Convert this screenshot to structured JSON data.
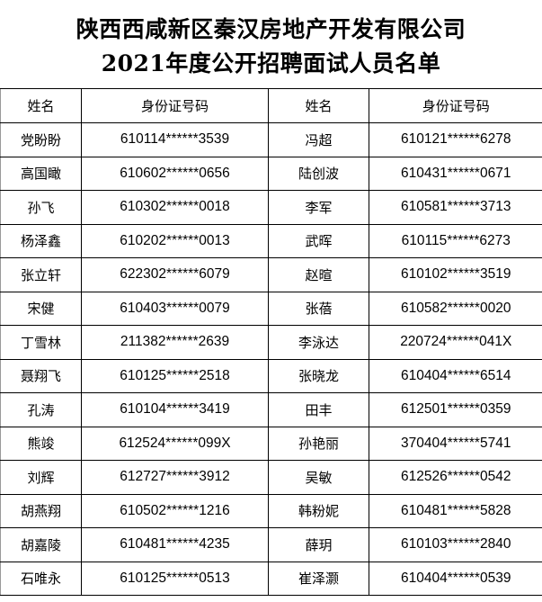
{
  "title_line1": "陕西西咸新区秦汉房地产开发有限公司",
  "title_line2": "2021年度公开招聘面试人员名单",
  "headers": [
    "姓名",
    "身份证号码",
    "姓名",
    "身份证号码"
  ],
  "rows": [
    [
      "党盼盼",
      "610114******3539",
      "冯超",
      "610121******6278"
    ],
    [
      "高国瞰",
      "610602******0656",
      "陆创波",
      "610431******0671"
    ],
    [
      "孙飞",
      "610302******0018",
      "李军",
      "610581******3713"
    ],
    [
      "杨泽鑫",
      "610202******0013",
      "武晖",
      "610115******6273"
    ],
    [
      "张立轩",
      "622302******6079",
      "赵暄",
      "610102******3519"
    ],
    [
      "宋健",
      "610403******0079",
      "张蓓",
      "610582******0020"
    ],
    [
      "丁雪林",
      "211382******2639",
      "李泳达",
      "220724******041X"
    ],
    [
      "聂翔飞",
      "610125******2518",
      "张晓龙",
      "610404******6514"
    ],
    [
      "孔涛",
      "610104******3419",
      "田丰",
      "612501******0359"
    ],
    [
      "熊竣",
      "612524******099X",
      "孙艳丽",
      "370404******5741"
    ],
    [
      "刘辉",
      "612727******3912",
      "吴敏",
      "612526******0542"
    ],
    [
      "胡燕翔",
      "610502******1216",
      "韩粉妮",
      "610481******5828"
    ],
    [
      "胡嘉陵",
      "610481******4235",
      "薛玥",
      "610103******2840"
    ],
    [
      "石唯永",
      "610125******0513",
      "崔泽灏",
      "610404******0539"
    ]
  ]
}
